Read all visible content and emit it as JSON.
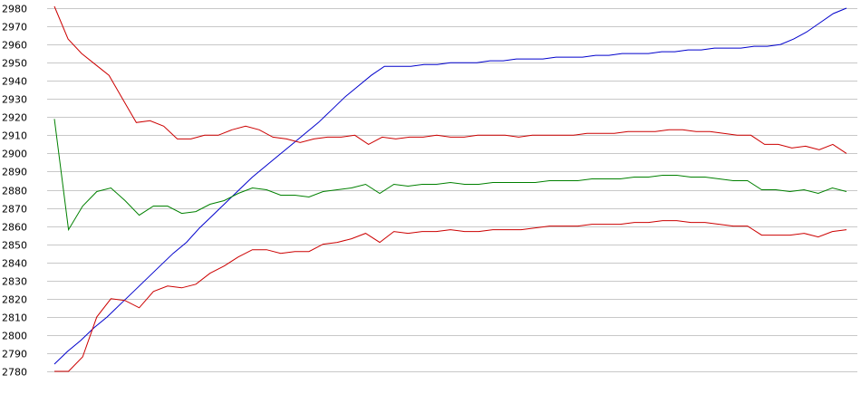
{
  "chart_data": {
    "type": "line",
    "title": "",
    "xlabel": "",
    "ylabel": "",
    "ylim": [
      2780,
      2980
    ],
    "y_ticks": [
      2780,
      2790,
      2800,
      2810,
      2820,
      2830,
      2840,
      2850,
      2860,
      2870,
      2880,
      2890,
      2900,
      2910,
      2920,
      2930,
      2940,
      2950,
      2960,
      2970,
      2980
    ],
    "grid": true,
    "legend": "none",
    "series": [
      {
        "color": "#0000cc",
        "values": [
          2784,
          2791,
          2797,
          2804,
          2810,
          2817,
          2824,
          2831,
          2838,
          2845,
          2851,
          2859,
          2866,
          2873,
          2880,
          2887,
          2893,
          2899,
          2905,
          2911,
          2917,
          2924,
          2931,
          2937,
          2943,
          2948,
          2948,
          2948,
          2949,
          2949,
          2950,
          2950,
          2950,
          2951,
          2951,
          2952,
          2952,
          2952,
          2953,
          2953,
          2953,
          2954,
          2954,
          2955,
          2955,
          2955,
          2956,
          2956,
          2957,
          2957,
          2958,
          2958,
          2958,
          2959,
          2959,
          2960,
          2963,
          2967,
          2972,
          2977,
          2980
        ]
      },
      {
        "color": "#cc0000",
        "values": [
          2981,
          2963,
          2955,
          2949,
          2943,
          2930,
          2917,
          2918,
          2915,
          2908,
          2908,
          2910,
          2910,
          2913,
          2915,
          2913,
          2909,
          2908,
          2906,
          2908,
          2909,
          2909,
          2910,
          2905,
          2909,
          2908,
          2909,
          2909,
          2910,
          2909,
          2909,
          2910,
          2910,
          2910,
          2909,
          2910,
          2910,
          2910,
          2910,
          2911,
          2911,
          2911,
          2912,
          2912,
          2912,
          2913,
          2913,
          2912,
          2912,
          2911,
          2910,
          2910,
          2905,
          2905,
          2903,
          2904,
          2902,
          2905,
          2900
        ]
      },
      {
        "color": "#008000",
        "values": [
          2919,
          2858,
          2871,
          2879,
          2881,
          2874,
          2866,
          2871,
          2871,
          2867,
          2868,
          2872,
          2874,
          2878,
          2881,
          2880,
          2877,
          2877,
          2876,
          2879,
          2880,
          2881,
          2883,
          2878,
          2883,
          2882,
          2883,
          2883,
          2884,
          2883,
          2883,
          2884,
          2884,
          2884,
          2884,
          2885,
          2885,
          2885,
          2886,
          2886,
          2886,
          2887,
          2887,
          2888,
          2888,
          2887,
          2887,
          2886,
          2885,
          2885,
          2880,
          2880,
          2879,
          2880,
          2878,
          2881,
          2879
        ]
      },
      {
        "color": "#cc0000",
        "values": [
          2780,
          2780,
          2788,
          2810,
          2820,
          2819,
          2815,
          2824,
          2827,
          2826,
          2828,
          2834,
          2838,
          2843,
          2847,
          2847,
          2845,
          2846,
          2846,
          2850,
          2851,
          2853,
          2856,
          2851,
          2857,
          2856,
          2857,
          2857,
          2858,
          2857,
          2857,
          2858,
          2858,
          2858,
          2859,
          2860,
          2860,
          2860,
          2861,
          2861,
          2861,
          2862,
          2862,
          2863,
          2863,
          2862,
          2862,
          2861,
          2860,
          2860,
          2855,
          2855,
          2855,
          2856,
          2854,
          2857,
          2858
        ]
      }
    ]
  }
}
